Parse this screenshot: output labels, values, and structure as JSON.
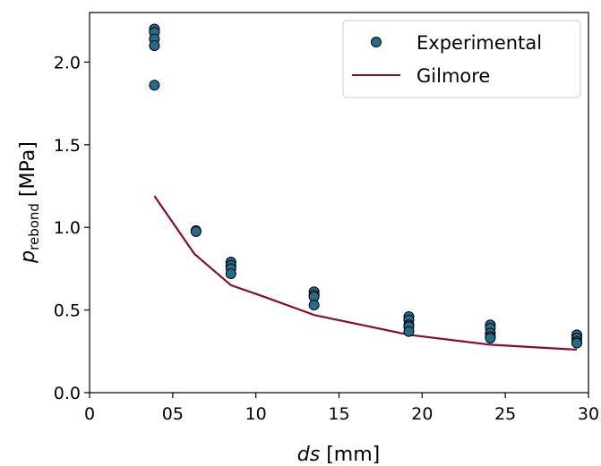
{
  "chart_data": {
    "type": "scatter",
    "xlabel": {
      "italic": "ds",
      "rest": " [mm]"
    },
    "ylabel": {
      "base": "p",
      "sub": "rebond",
      "rest": " [MPa]"
    },
    "xlim": [
      0,
      30
    ],
    "ylim": [
      0,
      2.3
    ],
    "x_ticks": [
      0,
      5,
      10,
      15,
      20,
      25,
      30
    ],
    "x_tick_labels": [
      "0",
      "05",
      "10",
      "15",
      "20",
      "25",
      "30"
    ],
    "y_ticks": [
      0,
      0.5,
      1.0,
      1.5,
      2.0
    ],
    "y_tick_labels": [
      "0.0",
      "0.5",
      "1.0",
      "1.5",
      "2.0"
    ],
    "grid": false,
    "legend_position": "top-right",
    "series": [
      {
        "name": "Experimental",
        "kind": "scatter",
        "marker_color": "#1f6e8c",
        "edge_color": "#000000",
        "points": [
          [
            3.9,
            2.2
          ],
          [
            3.9,
            2.18
          ],
          [
            3.9,
            2.14
          ],
          [
            3.9,
            2.1
          ],
          [
            3.9,
            1.86
          ],
          [
            6.4,
            0.98
          ],
          [
            6.4,
            0.975
          ],
          [
            8.5,
            0.79
          ],
          [
            8.5,
            0.77
          ],
          [
            8.5,
            0.75
          ],
          [
            8.5,
            0.72
          ],
          [
            13.5,
            0.61
          ],
          [
            13.5,
            0.59
          ],
          [
            13.5,
            0.58
          ],
          [
            13.5,
            0.53
          ],
          [
            19.2,
            0.46
          ],
          [
            19.2,
            0.44
          ],
          [
            19.2,
            0.41
          ],
          [
            19.2,
            0.4
          ],
          [
            19.2,
            0.37
          ],
          [
            24.1,
            0.41
          ],
          [
            24.1,
            0.39
          ],
          [
            24.1,
            0.36
          ],
          [
            24.1,
            0.34
          ],
          [
            24.1,
            0.33
          ],
          [
            29.3,
            0.35
          ],
          [
            29.3,
            0.33
          ],
          [
            29.3,
            0.31
          ],
          [
            29.3,
            0.3
          ]
        ]
      },
      {
        "name": "Gilmore",
        "kind": "line",
        "line_color": "#8b0a35",
        "points": [
          [
            3.9,
            1.19
          ],
          [
            6.3,
            0.84
          ],
          [
            8.5,
            0.65
          ],
          [
            10.5,
            0.58
          ],
          [
            13.5,
            0.47
          ],
          [
            19.2,
            0.35
          ],
          [
            24.1,
            0.29
          ],
          [
            29.3,
            0.26
          ]
        ]
      }
    ]
  }
}
